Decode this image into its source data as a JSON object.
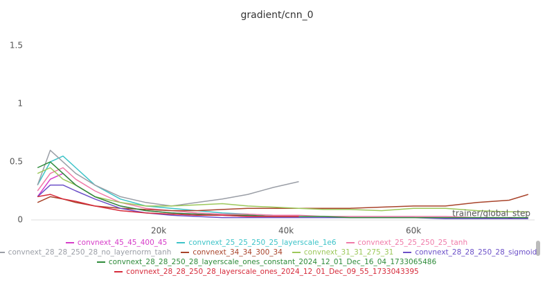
{
  "chart_data": {
    "type": "line",
    "title": "gradient/cnn_0",
    "x_label": "trainer/global_step",
    "xlim": [
      0,
      79000
    ],
    "ylim": [
      0,
      1.65
    ],
    "xticks": [
      {
        "value": 20000,
        "label": "20k"
      },
      {
        "value": 40000,
        "label": "40k"
      },
      {
        "value": 60000,
        "label": "60k"
      }
    ],
    "yticks": [
      0,
      0.5,
      1,
      1.5
    ],
    "x": [
      1000,
      3000,
      5000,
      7000,
      10000,
      14000,
      18000,
      22000,
      26000,
      30000,
      34000,
      38000,
      42000,
      46000,
      50000,
      55000,
      60000,
      65000,
      70000,
      75000,
      78000
    ],
    "series": [
      {
        "name": "convnext_45_45_400_45",
        "color": "#d63cc8",
        "values": [
          0.2,
          0.35,
          0.4,
          0.3,
          0.2,
          0.12,
          0.08,
          0.06,
          0.05,
          0.04,
          0.03,
          0.03,
          0.03,
          null,
          null,
          null,
          null,
          null,
          null,
          null,
          null
        ]
      },
      {
        "name": "convnext_25_25_250_25_layerscale_1e6",
        "color": "#3cc3c8",
        "values": [
          0.3,
          0.5,
          0.55,
          0.45,
          0.3,
          0.18,
          0.12,
          0.1,
          0.08,
          0.06,
          0.05,
          0.04,
          0.04,
          null,
          null,
          null,
          null,
          null,
          null,
          null,
          null
        ]
      },
      {
        "name": "convnext_25_25_250_25_tanh",
        "color": "#f07aa8",
        "values": [
          0.25,
          0.4,
          0.45,
          0.35,
          0.25,
          0.15,
          0.1,
          0.08,
          0.06,
          0.05,
          0.05,
          0.04,
          0.04,
          0.03,
          0.03,
          0.03,
          0.03,
          0.03,
          0.02,
          0.02,
          0.02
        ]
      },
      {
        "name": "convnext_28_28_250_28_no_layernorm_tanh",
        "color": "#9a9ea6",
        "values": [
          0.3,
          0.6,
          0.5,
          0.4,
          0.3,
          0.2,
          0.15,
          0.12,
          0.15,
          0.18,
          0.22,
          0.28,
          0.33,
          null,
          null,
          null,
          null,
          null,
          null,
          null,
          null
        ]
      },
      {
        "name": "convnext_34_34_300_34",
        "color": "#a8432a",
        "values": [
          0.15,
          0.2,
          0.18,
          0.15,
          0.12,
          0.1,
          0.09,
          0.08,
          0.08,
          0.09,
          0.1,
          0.1,
          0.1,
          0.1,
          0.1,
          0.11,
          0.12,
          0.12,
          0.15,
          0.17,
          0.22
        ]
      },
      {
        "name": "convnext_31_31_275_31",
        "color": "#9cc85a",
        "values": [
          0.4,
          0.45,
          0.35,
          0.3,
          0.2,
          0.15,
          0.12,
          0.12,
          0.13,
          0.14,
          0.12,
          0.11,
          0.1,
          0.09,
          0.09,
          0.08,
          0.1,
          0.1,
          0.08,
          0.07,
          0.07
        ]
      },
      {
        "name": "convnext_28_28_250_28_sigmoid",
        "color": "#6b4fc8",
        "values": [
          0.2,
          0.3,
          0.3,
          0.25,
          0.18,
          0.1,
          0.06,
          0.04,
          0.03,
          0.02,
          0.02,
          0.02,
          0.02,
          0.02,
          0.02,
          0.02,
          0.02,
          0.01,
          0.01,
          0.01,
          0.01
        ]
      },
      {
        "name": "convnext_28_28_250_28_layerscale_ones_constant_2024_12_01_Dec_16_04_1733065486",
        "color": "#2e8b3a",
        "values": [
          0.45,
          0.5,
          0.4,
          0.3,
          0.2,
          0.12,
          0.08,
          0.06,
          0.05,
          0.04,
          0.04,
          0.03,
          0.03,
          0.03,
          0.02,
          0.02,
          0.02,
          0.02,
          0.02,
          0.02,
          0.02
        ]
      },
      {
        "name": "convnext_28_28_250_28_layerscale_ones_2024_12_01_Dec_09_55_1733043395",
        "color": "#d62a3a",
        "values": [
          0.2,
          0.22,
          0.18,
          0.16,
          0.12,
          0.08,
          0.06,
          0.05,
          0.04,
          0.04,
          0.03,
          0.03,
          0.03,
          null,
          null,
          null,
          null,
          null,
          null,
          null,
          null
        ]
      }
    ]
  }
}
